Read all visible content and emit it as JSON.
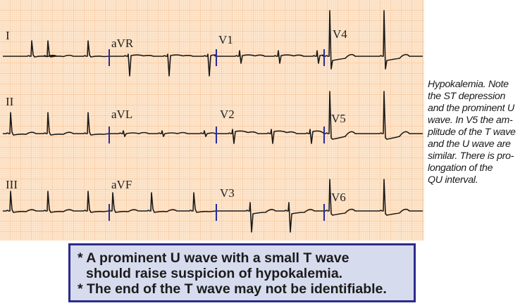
{
  "ecg": {
    "leads": [
      "I",
      "aVR",
      "V1",
      "V4",
      "II",
      "aVL",
      "V2",
      "V5",
      "III",
      "aVF",
      "V3",
      "V6"
    ],
    "colors": {
      "paper": "#fde6cd",
      "grid_minor": "#f8cfa8",
      "grid_major": "#f2b98a",
      "trace": "#1a1a1a",
      "marker": "#2b2b9c"
    }
  },
  "caption": {
    "lines": [
      "Hypokalemia. Note",
      "the ST depression",
      "and the prominent U",
      "wave. In V5 the am-",
      "plitude of the T wave",
      "and the U wave are",
      "similar. There is pro-",
      "longation of the",
      "QU interval."
    ]
  },
  "callout": {
    "lines": [
      "* A prominent U wave with a small T wave",
      "  should raise suspicion of hypokalemia.",
      "* The end of the T wave may not be identifiable."
    ],
    "colors": {
      "border": "#2b2b8c",
      "background": "#d7dbee"
    }
  }
}
